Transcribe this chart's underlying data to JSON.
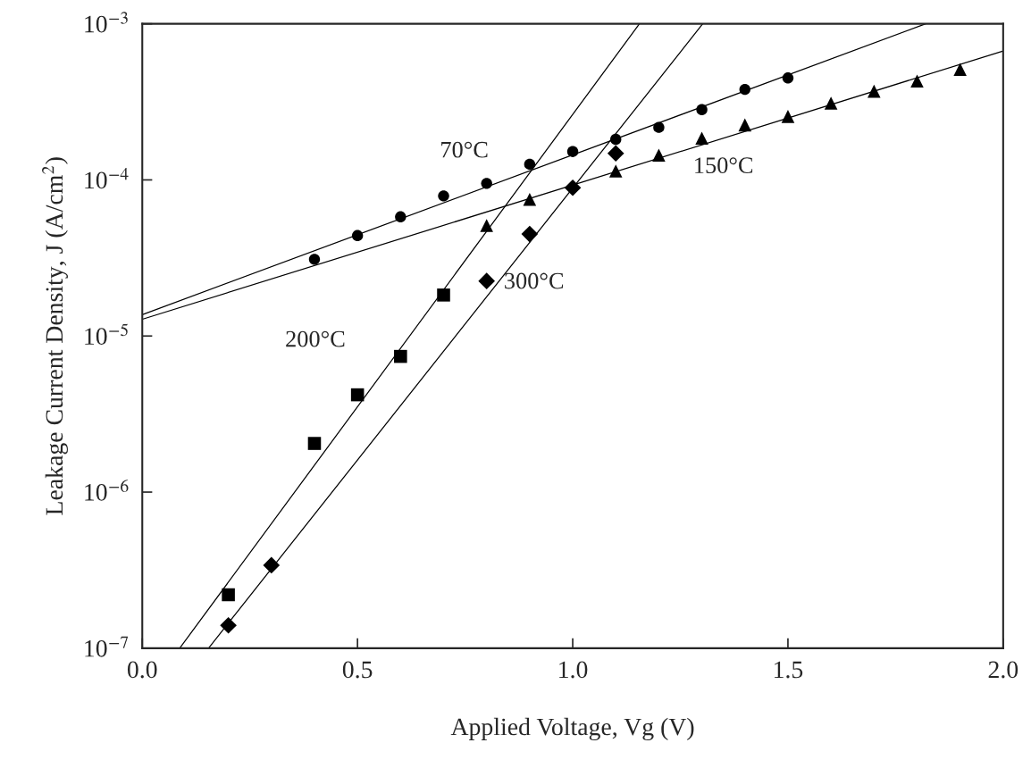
{
  "chart_data": {
    "type": "scatter",
    "xlabel": "Applied Voltage, Vg (V)",
    "ylabel": "Leakage Current Density, J (A/cm$^{2}$)",
    "log": "y",
    "xlim": [
      0,
      2
    ],
    "ylim": [
      1e-07,
      0.001
    ],
    "xticks": [
      {
        "value": 0,
        "label": "0.0"
      },
      {
        "value": 0.5,
        "label": "0.5"
      },
      {
        "value": 1,
        "label": "1.0"
      },
      {
        "value": 1.5,
        "label": "1.5"
      },
      {
        "value": 2,
        "label": "2.0"
      }
    ],
    "yticks": [
      {
        "value": 1e-07,
        "label": "10$^{−7}$"
      },
      {
        "value": 1e-06,
        "label": "10$^{−6}$"
      },
      {
        "value": 1e-05,
        "label": "10$^{−5}$"
      },
      {
        "value": 0.0001,
        "label": "10$^{−4}$"
      },
      {
        "value": 0.001,
        "label": "10$^{−3}$"
      }
    ],
    "grid": false,
    "legend": false,
    "series": [
      {
        "marker": "circle",
        "color": "#000000",
        "x": [
          0.4,
          0.5,
          0.6,
          0.7,
          0.8,
          0.9,
          1.0,
          1.1,
          1.2,
          1.3,
          1.4,
          1.5
        ],
        "values": [
          3.1e-05,
          4.4e-05,
          5.8e-05,
          7.9e-05,
          9.5e-05,
          0.000126,
          0.000152,
          0.000182,
          0.000217,
          0.000282,
          0.00038,
          0.00045
        ]
      },
      {
        "marker": "triangle",
        "color": "#000000",
        "x": [
          0.8,
          0.9,
          1.1,
          1.2,
          1.3,
          1.4,
          1.5,
          1.6,
          1.7,
          1.8,
          1.9
        ],
        "values": [
          5.1e-05,
          7.5e-05,
          0.000114,
          0.000144,
          0.000185,
          0.000225,
          0.000255,
          0.00031,
          0.00037,
          0.00043,
          0.00051
        ]
      },
      {
        "marker": "square",
        "color": "#000000",
        "x": [
          0.2,
          0.4,
          0.5,
          0.6,
          0.7
        ],
        "values": [
          2.2e-07,
          2.05e-06,
          4.2e-06,
          7.4e-06,
          1.83e-05
        ]
      },
      {
        "marker": "diamond",
        "color": "#000000",
        "x": [
          0.2,
          0.3,
          0.8,
          0.9,
          1.0,
          1.1
        ],
        "values": [
          1.4e-07,
          3.4e-07,
          2.25e-05,
          4.5e-05,
          8.9e-05,
          0.000148
        ]
      },
      {
        "type": "line",
        "marker": "none",
        "line_style": "solid",
        "color": "#000000",
        "x": [
          0,
          1.82
        ],
        "values": [
          1.37e-05,
          0.001
        ]
      },
      {
        "type": "line",
        "marker": "none",
        "line_style": "solid",
        "color": "#000000",
        "x": [
          0,
          2.0
        ],
        "values": [
          1.28e-05,
          0.00067
        ]
      },
      {
        "type": "line",
        "marker": "none",
        "line_style": "solid",
        "color": "#000000",
        "x": [
          0.087,
          1.155
        ],
        "values": [
          1e-07,
          0.001
        ]
      },
      {
        "type": "line",
        "marker": "none",
        "line_style": "solid",
        "color": "#000000",
        "x": [
          0.154,
          1.302
        ],
        "values": [
          1e-07,
          0.001
        ]
      }
    ],
    "annotations": [
      "70°C",
      "150°C",
      "300°C",
      "200°C"
    ]
  }
}
